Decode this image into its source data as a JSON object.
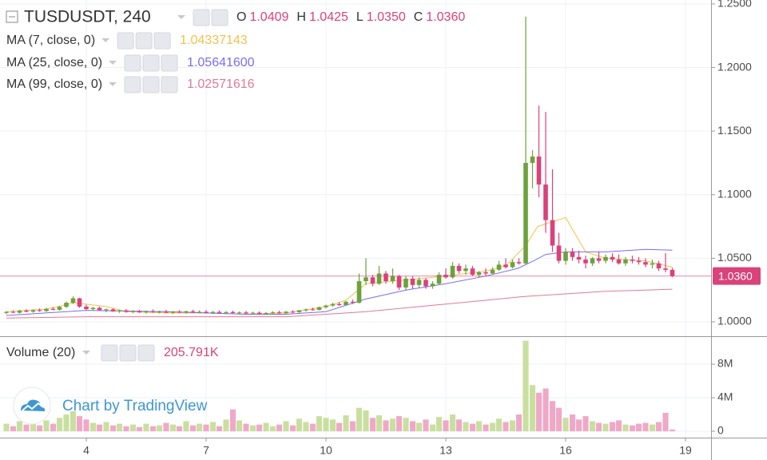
{
  "chart_data": {
    "type": "candlestick",
    "title": "TUSDUSDT, 240",
    "ohlc_legend": [
      {
        "label": "O",
        "value": "1.0409"
      },
      {
        "label": "H",
        "value": "1.0425"
      },
      {
        "label": "L",
        "value": "1.0350"
      },
      {
        "label": "C",
        "value": "1.0360"
      }
    ],
    "up_color": "#6ca23a",
    "down_color": "#d9427a",
    "x": [
      2.0,
      2.17,
      2.33,
      2.5,
      2.67,
      2.83,
      3.0,
      3.17,
      3.33,
      3.5,
      3.67,
      3.83,
      4.0,
      4.17,
      4.33,
      4.5,
      4.67,
      4.83,
      5.0,
      5.17,
      5.33,
      5.5,
      5.67,
      5.83,
      6.0,
      6.17,
      6.33,
      6.5,
      6.67,
      6.83,
      7.0,
      7.17,
      7.33,
      7.5,
      7.67,
      7.83,
      8.0,
      8.17,
      8.33,
      8.5,
      8.67,
      8.83,
      9.0,
      9.17,
      9.33,
      9.5,
      9.67,
      9.83,
      10.0,
      10.17,
      10.33,
      10.5,
      10.67,
      10.83,
      11.0,
      11.17,
      11.33,
      11.5,
      11.67,
      11.83,
      12.0,
      12.17,
      12.33,
      12.5,
      12.67,
      12.83,
      13.0,
      13.17,
      13.33,
      13.5,
      13.67,
      13.83,
      14.0,
      14.17,
      14.33,
      14.5,
      14.67,
      14.83,
      15.0,
      15.17,
      15.33,
      15.5,
      15.67,
      15.83,
      16.0,
      16.17,
      16.33,
      16.5,
      16.67,
      16.83,
      17.0,
      17.17,
      17.33,
      17.5,
      17.67,
      17.83,
      18.0,
      18.17,
      18.33,
      18.5,
      18.67
    ],
    "ohlc": [
      [
        1.007,
        1.0085,
        1.006,
        1.0078
      ],
      [
        1.0078,
        1.009,
        1.0068,
        1.0072
      ],
      [
        1.0072,
        1.0095,
        1.0065,
        1.0088
      ],
      [
        1.0088,
        1.01,
        1.0075,
        1.008
      ],
      [
        1.008,
        1.0098,
        1.0072,
        1.0092
      ],
      [
        1.0092,
        1.0105,
        1.008,
        1.0085
      ],
      [
        1.0085,
        1.011,
        1.0078,
        1.0102
      ],
      [
        1.0102,
        1.0115,
        1.009,
        1.0095
      ],
      [
        1.0095,
        1.0125,
        1.0088,
        1.0118
      ],
      [
        1.0118,
        1.016,
        1.011,
        1.015
      ],
      [
        1.015,
        1.02,
        1.014,
        1.0185
      ],
      [
        1.0185,
        1.019,
        1.011,
        1.012
      ],
      [
        1.012,
        1.0135,
        1.0095,
        1.01
      ],
      [
        1.01,
        1.0118,
        1.0085,
        1.011
      ],
      [
        1.011,
        1.012,
        1.0088,
        1.0092
      ],
      [
        1.0092,
        1.0105,
        1.0075,
        1.0098
      ],
      [
        1.0098,
        1.0108,
        1.0078,
        1.0082
      ],
      [
        1.0082,
        1.0096,
        1.007,
        1.009
      ],
      [
        1.009,
        1.01,
        1.0072,
        1.0078
      ],
      [
        1.0078,
        1.0092,
        1.0068,
        1.0085
      ],
      [
        1.0085,
        1.0095,
        1.007,
        1.0075
      ],
      [
        1.0075,
        1.009,
        1.0065,
        1.0082
      ],
      [
        1.0082,
        1.0098,
        1.0072,
        1.0076
      ],
      [
        1.0076,
        1.0088,
        1.0066,
        1.008
      ],
      [
        1.008,
        1.0095,
        1.007,
        1.0072
      ],
      [
        1.0072,
        1.0086,
        1.0062,
        1.0081
      ],
      [
        1.0081,
        1.0092,
        1.0068,
        1.0074
      ],
      [
        1.0074,
        1.0088,
        1.0064,
        1.0083
      ],
      [
        1.0083,
        1.0095,
        1.007,
        1.0076
      ],
      [
        1.0076,
        1.009,
        1.0066,
        1.0079
      ],
      [
        1.0079,
        1.0092,
        1.0068,
        1.0071
      ],
      [
        1.0071,
        1.0085,
        1.0062,
        1.0078
      ],
      [
        1.0078,
        1.009,
        1.0066,
        1.007
      ],
      [
        1.007,
        1.0084,
        1.006,
        1.0077
      ],
      [
        1.0077,
        1.0088,
        1.0065,
        1.0069
      ],
      [
        1.0069,
        1.0082,
        1.0058,
        1.0074
      ],
      [
        1.0074,
        1.0086,
        1.0062,
        1.0066
      ],
      [
        1.0066,
        1.008,
        1.0056,
        1.0072
      ],
      [
        1.0072,
        1.0082,
        1.0058,
        1.0064
      ],
      [
        1.0064,
        1.0078,
        1.0054,
        1.007
      ],
      [
        1.007,
        1.0084,
        1.006,
        1.0075
      ],
      [
        1.0075,
        1.0088,
        1.0064,
        1.0068
      ],
      [
        1.0068,
        1.0085,
        1.006,
        1.008
      ],
      [
        1.008,
        1.0092,
        1.0068,
        1.0076
      ],
      [
        1.0076,
        1.0095,
        1.007,
        1.009
      ],
      [
        1.009,
        1.0105,
        1.008,
        1.0098
      ],
      [
        1.0098,
        1.0112,
        1.0088,
        1.0094
      ],
      [
        1.0094,
        1.012,
        1.009,
        1.0115
      ],
      [
        1.0115,
        1.0135,
        1.0105,
        1.0128
      ],
      [
        1.0128,
        1.015,
        1.0118,
        1.014
      ],
      [
        1.014,
        1.0155,
        1.0125,
        1.0132
      ],
      [
        1.0132,
        1.0165,
        1.0128,
        1.0158
      ],
      [
        1.0158,
        1.0175,
        1.014,
        1.015
      ],
      [
        1.015,
        1.038,
        1.0145,
        1.032
      ],
      [
        1.032,
        1.05,
        1.029,
        1.035
      ],
      [
        1.035,
        1.037,
        1.028,
        1.03
      ],
      [
        1.03,
        1.044,
        1.029,
        1.038
      ],
      [
        1.038,
        1.04,
        1.03,
        1.032
      ],
      [
        1.032,
        1.042,
        1.03,
        1.036
      ],
      [
        1.036,
        1.037,
        1.025,
        1.027
      ],
      [
        1.027,
        1.036,
        1.025,
        1.034
      ],
      [
        1.034,
        1.036,
        1.026,
        1.029
      ],
      [
        1.029,
        1.035,
        1.027,
        1.033
      ],
      [
        1.033,
        1.0345,
        1.026,
        1.028
      ],
      [
        1.028,
        1.032,
        1.026,
        1.03
      ],
      [
        1.03,
        1.039,
        1.029,
        1.037
      ],
      [
        1.037,
        1.042,
        1.034,
        1.035
      ],
      [
        1.035,
        1.047,
        1.034,
        1.044
      ],
      [
        1.044,
        1.046,
        1.038,
        1.04
      ],
      [
        1.04,
        1.045,
        1.037,
        1.042
      ],
      [
        1.042,
        1.044,
        1.036,
        1.037
      ],
      [
        1.037,
        1.04,
        1.035,
        1.039
      ],
      [
        1.039,
        1.042,
        1.036,
        1.038
      ],
      [
        1.038,
        1.043,
        1.037,
        1.041
      ],
      [
        1.041,
        1.048,
        1.04,
        1.045
      ],
      [
        1.045,
        1.05,
        1.042,
        1.043
      ],
      [
        1.043,
        1.049,
        1.042,
        1.047
      ],
      [
        1.047,
        1.05,
        1.045,
        1.046
      ],
      [
        1.046,
        1.24,
        1.045,
        1.125
      ],
      [
        1.125,
        1.135,
        1.105,
        1.13
      ],
      [
        1.13,
        1.17,
        1.098,
        1.108
      ],
      [
        1.108,
        1.165,
        1.07,
        1.08
      ],
      [
        1.08,
        1.12,
        1.055,
        1.06
      ],
      [
        1.06,
        1.07,
        1.046,
        1.048
      ],
      [
        1.048,
        1.058,
        1.045,
        1.055
      ],
      [
        1.055,
        1.058,
        1.048,
        1.051
      ],
      [
        1.051,
        1.056,
        1.046,
        1.049
      ],
      [
        1.049,
        1.052,
        1.042,
        1.046
      ],
      [
        1.046,
        1.051,
        1.044,
        1.05
      ],
      [
        1.05,
        1.055,
        1.046,
        1.048
      ],
      [
        1.048,
        1.053,
        1.046,
        1.051
      ],
      [
        1.051,
        1.054,
        1.047,
        1.049
      ],
      [
        1.049,
        1.053,
        1.045,
        1.046
      ],
      [
        1.046,
        1.051,
        1.044,
        1.049
      ],
      [
        1.049,
        1.052,
        1.046,
        1.048
      ],
      [
        1.048,
        1.051,
        1.045,
        1.047
      ],
      [
        1.047,
        1.05,
        1.043,
        1.045
      ],
      [
        1.045,
        1.049,
        1.042,
        1.046
      ],
      [
        1.046,
        1.048,
        1.04,
        1.042
      ],
      [
        1.042,
        1.054,
        1.039,
        1.0409
      ],
      [
        1.0409,
        1.0425,
        1.035,
        1.036
      ]
    ],
    "xlim": [
      1.84,
      19.64
    ],
    "xticks": [
      4,
      7,
      10,
      13,
      16,
      19
    ],
    "ylim": [
      0.9887,
      1.2531
    ],
    "yticks": [
      {
        "value": 1.0,
        "label": "1.0000"
      },
      {
        "value": 1.05,
        "label": "1.0500"
      },
      {
        "value": 1.1,
        "label": "1.1000"
      },
      {
        "value": 1.15,
        "label": "1.1500"
      },
      {
        "value": 1.2,
        "label": "1.2000"
      },
      {
        "value": 1.25,
        "label": "1.2500"
      }
    ],
    "grid": true,
    "last_price": {
      "value": 1.036,
      "label": "1.0360"
    },
    "indicators": [
      {
        "name": "MA (7, close, 0)",
        "last": "1.04337143",
        "color": "#f2c14e",
        "x": [
          2,
          3,
          3.7,
          4.5,
          5,
          6,
          7,
          8,
          9,
          10,
          10.5,
          11,
          12,
          13,
          14,
          14.5,
          15,
          15.3,
          16,
          16.5,
          17,
          18,
          18.67
        ],
        "values": [
          1.008,
          1.01,
          1.015,
          1.012,
          1.008,
          1.007,
          1.007,
          1.006,
          1.007,
          1.012,
          1.017,
          1.03,
          1.033,
          1.036,
          1.04,
          1.044,
          1.06,
          1.075,
          1.082,
          1.055,
          1.05,
          1.048,
          1.043
        ]
      },
      {
        "name": "MA (25, close, 0)",
        "last": "1.05641600",
        "color": "#7b6cf0",
        "x": [
          2,
          4,
          6,
          8,
          9,
          10,
          11,
          12,
          13,
          14,
          14.8,
          15.2,
          15.5,
          16,
          17,
          18,
          18.67
        ],
        "values": [
          1.005,
          1.009,
          1.008,
          1.006,
          1.006,
          1.008,
          1.018,
          1.025,
          1.03,
          1.036,
          1.042,
          1.048,
          1.053,
          1.055,
          1.055,
          1.057,
          1.0564
        ]
      },
      {
        "name": "MA (99, close, 0)",
        "last": "1.02571616",
        "color": "#e07a97",
        "x": [
          2,
          4,
          6,
          8,
          9,
          10,
          11,
          12,
          13,
          14,
          15,
          16,
          17,
          18,
          18.67
        ],
        "values": [
          1.003,
          1.004,
          1.004,
          1.004,
          1.004,
          1.006,
          1.008,
          1.011,
          1.014,
          1.017,
          1.02,
          1.022,
          1.024,
          1.025,
          1.0257
        ]
      }
    ],
    "volume": {
      "name": "Volume (20)",
      "last": "205.791K",
      "up_color": "#c9df9f",
      "down_color": "#f0a8c8",
      "ylim": [
        -0.76,
        11.24
      ],
      "yticks": [
        0,
        {
          "value": 4,
          "label": "4M"
        },
        {
          "value": 8,
          "label": "8M"
        }
      ],
      "values": [
        0.9,
        0.6,
        1.2,
        0.8,
        1.0,
        0.7,
        1.3,
        0.9,
        1.6,
        2.0,
        2.4,
        1.8,
        1.4,
        1.0,
        0.8,
        1.1,
        0.7,
        0.9,
        0.6,
        0.8,
        0.5,
        0.9,
        0.6,
        0.7,
        1.0,
        0.8,
        0.6,
        1.2,
        0.7,
        0.9,
        0.8,
        1.1,
        0.6,
        1.4,
        2.6,
        1.3,
        0.9,
        0.7,
        0.8,
        1.0,
        0.6,
        0.8,
        1.2,
        0.7,
        1.5,
        1.1,
        0.9,
        1.8,
        1.6,
        1.4,
        1.0,
        1.9,
        1.2,
        2.8,
        2.5,
        1.6,
        1.9,
        1.3,
        1.5,
        1.8,
        1.6,
        1.2,
        1.0,
        1.4,
        0.8,
        1.7,
        1.3,
        2.0,
        1.4,
        1.1,
        0.9,
        1.2,
        0.8,
        1.0,
        1.5,
        1.1,
        1.3,
        2.0,
        10.8,
        5.5,
        4.6,
        5.1,
        3.6,
        2.8,
        1.6,
        2.0,
        1.4,
        1.8,
        1.2,
        1.0,
        0.9,
        1.1,
        1.3,
        0.8,
        0.7,
        0.9,
        1.0,
        0.8,
        1.1,
        2.2,
        0.205791
      ]
    },
    "branding": "Chart by TradingView"
  }
}
